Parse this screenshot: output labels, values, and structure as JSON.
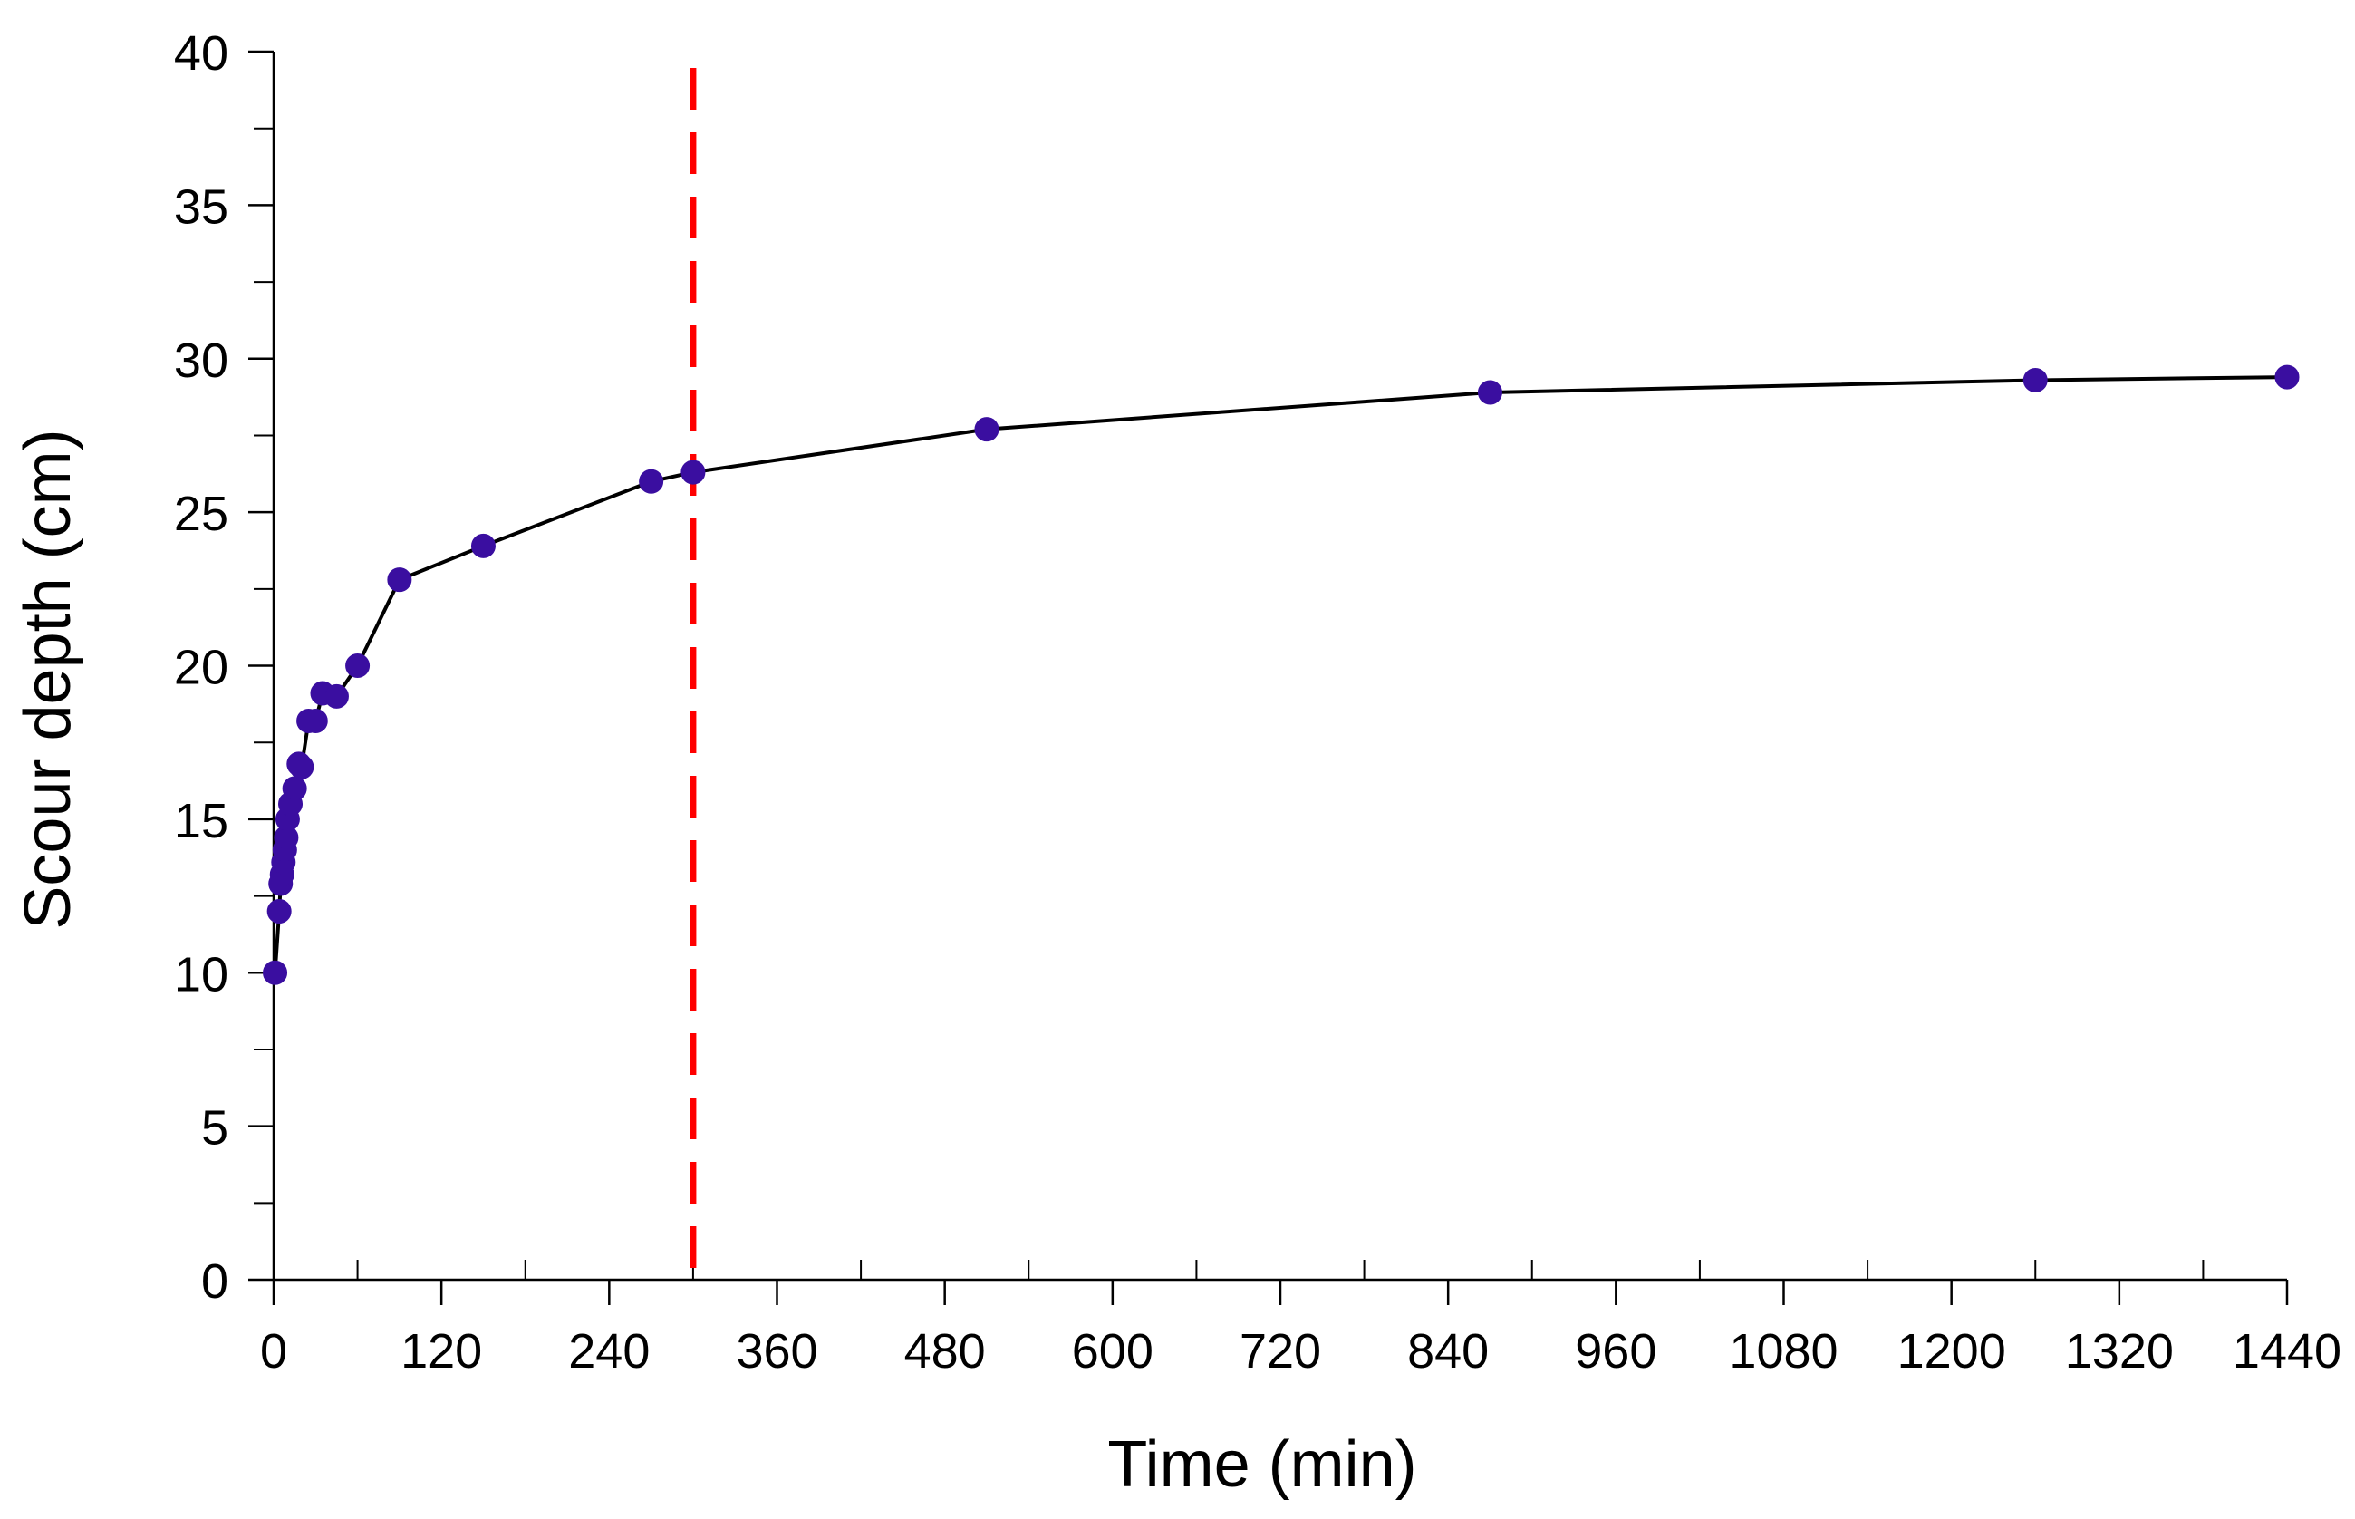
{
  "chart_data": {
    "type": "line",
    "title": "",
    "xlabel": "Time (min)",
    "ylabel": "Scour depth (cm)",
    "xlim": [
      0,
      1440
    ],
    "ylim": [
      0,
      40
    ],
    "x_ticks": [
      0,
      120,
      240,
      360,
      480,
      600,
      720,
      840,
      960,
      1080,
      1200,
      1320,
      1440
    ],
    "x_minor_step": 60,
    "y_ticks": [
      0,
      5,
      10,
      15,
      20,
      25,
      30,
      35,
      40
    ],
    "y_minor_step": 2.5,
    "grid": false,
    "legend": "none",
    "series": [
      {
        "name": "Scour depth",
        "color": "#3a0ea0",
        "line_color": "#000000",
        "marker": "circle",
        "x": [
          1,
          4,
          5,
          6,
          7,
          8,
          9,
          10,
          12,
          15,
          18,
          20,
          25,
          30,
          35,
          45,
          60,
          90,
          150,
          270,
          300,
          510,
          870,
          1260,
          1440
        ],
        "y": [
          10,
          12,
          12.9,
          13.2,
          13.6,
          14.0,
          14.4,
          15.0,
          15.5,
          16.0,
          16.8,
          16.7,
          18.2,
          18.2,
          19.1,
          19.0,
          20.0,
          22.8,
          23.9,
          26.0,
          26.3,
          27.7,
          28.9,
          29.3,
          29.4
        ]
      }
    ],
    "annotations": [
      {
        "type": "vertical-line",
        "x": 300,
        "style": "dashed",
        "color": "#ff0000"
      }
    ]
  }
}
